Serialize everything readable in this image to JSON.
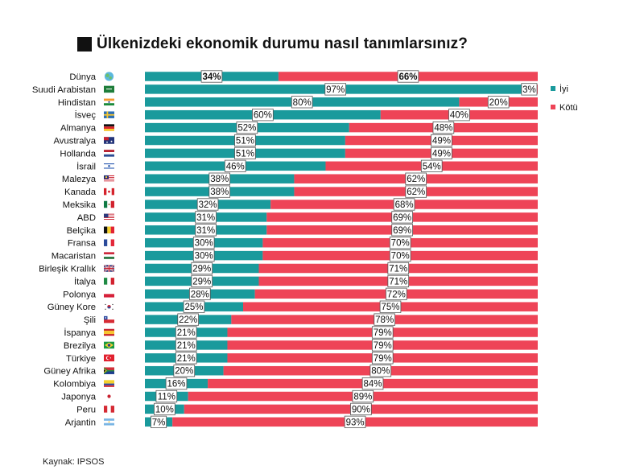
{
  "title": "Ülkenizdeki ekonomik durumu nasıl tanımlarsınız?",
  "source": "Kaynak: IPSOS",
  "colors": {
    "good": "#1a9a9c",
    "bad": "#ee4457",
    "label_border": "#555555"
  },
  "chart_data": {
    "type": "bar",
    "orientation": "horizontal",
    "stacked": true,
    "title": "Ülkenizdeki ekonomik durumu nasıl tanımlarsınız?",
    "xlim": [
      0,
      100
    ],
    "legend_position": "right",
    "categories": [
      "Dünya",
      "Suudi Arabistan",
      "Hindistan",
      "İsveç",
      "Almanya",
      "Avustralya",
      "Hollanda",
      "İsrail",
      "Malezya",
      "Kanada",
      "Meksika",
      "ABD",
      "Belçika",
      "Fransa",
      "Macaristan",
      "Birleşik Krallık",
      "İtalya",
      "Polonya",
      "Güney Kore",
      "Şili",
      "İspanya",
      "Brezilya",
      "Türkiye",
      "Güney Afrika",
      "Kolombiya",
      "Japonya",
      "Peru",
      "Arjantin"
    ],
    "flag_icons": [
      "globe-icon",
      "saudi-arabia-flag-icon",
      "india-flag-icon",
      "sweden-flag-icon",
      "germany-flag-icon",
      "australia-flag-icon",
      "netherlands-flag-icon",
      "israel-flag-icon",
      "malaysia-flag-icon",
      "canada-flag-icon",
      "mexico-flag-icon",
      "usa-flag-icon",
      "belgium-flag-icon",
      "france-flag-icon",
      "hungary-flag-icon",
      "uk-flag-icon",
      "italy-flag-icon",
      "poland-flag-icon",
      "south-korea-flag-icon",
      "chile-flag-icon",
      "spain-flag-icon",
      "brazil-flag-icon",
      "turkey-flag-icon",
      "south-africa-flag-icon",
      "colombia-flag-icon",
      "japan-flag-icon",
      "peru-flag-icon",
      "argentina-flag-icon"
    ],
    "series": [
      {
        "name": "İyi",
        "values": [
          34,
          97,
          80,
          60,
          52,
          51,
          51,
          46,
          38,
          38,
          32,
          31,
          31,
          30,
          30,
          29,
          29,
          28,
          25,
          22,
          21,
          21,
          21,
          20,
          16,
          11,
          10,
          7
        ]
      },
      {
        "name": "Kötü",
        "values": [
          66,
          3,
          20,
          40,
          48,
          49,
          49,
          54,
          62,
          62,
          68,
          69,
          69,
          70,
          70,
          71,
          71,
          72,
          75,
          78,
          79,
          79,
          79,
          80,
          84,
          89,
          90,
          93
        ]
      }
    ],
    "data_labels": {
      "good": [
        "34%",
        "97%",
        "80%",
        "60%",
        "52%",
        "51%",
        "51%",
        "46%",
        "38%",
        "38%",
        "32%",
        "31%",
        "31%",
        "30%",
        "30%",
        "29%",
        "29%",
        "28%",
        "25%",
        "22%",
        "21%",
        "21%",
        "21%",
        "20%",
        "16%",
        "11%",
        "10%",
        "7%"
      ],
      "bad": [
        "66%",
        "3%",
        "20%",
        "40%",
        "48%",
        "49%",
        "49%",
        "54%",
        "62%",
        "62%",
        "68%",
        "69%",
        "69%",
        "70%",
        "70%",
        "71%",
        "71%",
        "72%",
        "75%",
        "78%",
        "79%",
        "79%",
        "79%",
        "80%",
        "84%",
        "89%",
        "90%",
        "93%"
      ]
    },
    "legend": [
      "İyi",
      "Kötü"
    ]
  }
}
